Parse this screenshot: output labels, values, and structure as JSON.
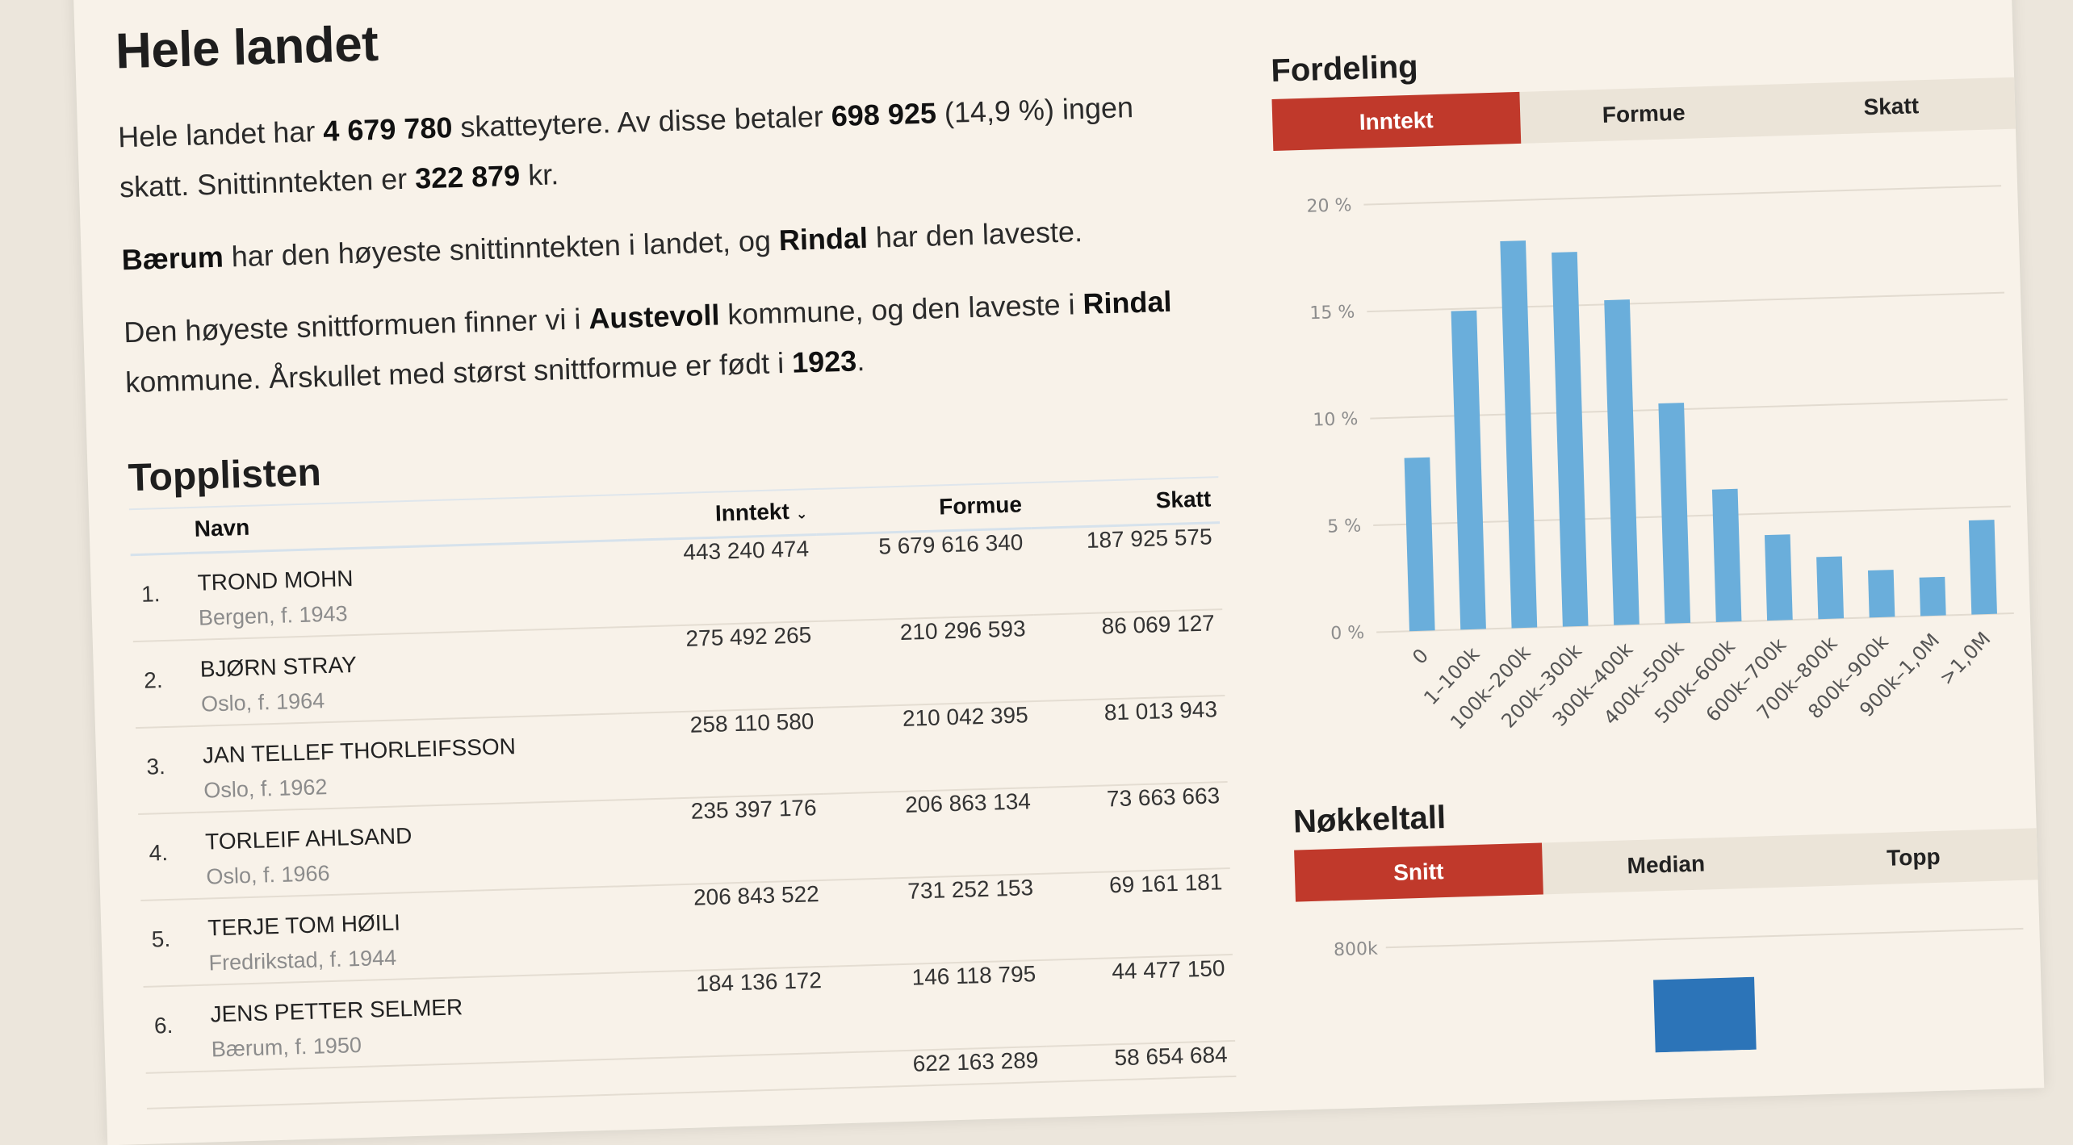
{
  "page": {
    "title": "Hele landet",
    "intro": {
      "p1_a": "Hele landet har ",
      "p1_taxpayers": "4 679 780",
      "p1_b": " skatteytere. Av disse betaler ",
      "p1_nontax": "698 925",
      "p1_c": " (14,9 %) ingen skatt. Snittinntekten er ",
      "p1_avg": "322 879",
      "p1_d": " kr.",
      "p2_high": "Bærum",
      "p2_a": " har den høyeste snittinntekten i landet, og ",
      "p2_low": "Rindal",
      "p2_b": " har den laveste.",
      "p3_a": "Den høyeste snittformuen finner vi i ",
      "p3_high": "Austevoll",
      "p3_b": " kommune, og den laveste i ",
      "p3_low": "Rindal",
      "p3_c": " kommune. Årskullet med størst snittformue er født i ",
      "p3_year": "1923",
      "p3_d": "."
    }
  },
  "toplist": {
    "title": "Topplisten",
    "columns": {
      "name": "Navn",
      "income": "Inntekt",
      "wealth": "Formue",
      "tax": "Skatt"
    },
    "sort_icon": "chevron-down-icon",
    "rows": [
      {
        "rank": "1.",
        "name": "TROND MOHN",
        "meta": "Bergen, f. 1943",
        "income": "443 240 474",
        "wealth": "5 679 616 340",
        "tax": "187 925 575"
      },
      {
        "rank": "2.",
        "name": "BJØRN STRAY",
        "meta": "Oslo, f. 1964",
        "income": "275 492 265",
        "wealth": "210 296 593",
        "tax": "86 069 127"
      },
      {
        "rank": "3.",
        "name": "JAN TELLEF THORLEIFSSON",
        "meta": "Oslo, f. 1962",
        "income": "258 110 580",
        "wealth": "210 042 395",
        "tax": "81 013 943"
      },
      {
        "rank": "4.",
        "name": "TORLEIF AHLSAND",
        "meta": "Oslo, f. 1966",
        "income": "235 397 176",
        "wealth": "206 863 134",
        "tax": "73 663 663"
      },
      {
        "rank": "5.",
        "name": "TERJE TOM HØILI",
        "meta": "Fredrikstad, f. 1944",
        "income": "206 843 522",
        "wealth": "731 252 153",
        "tax": "69 161 181"
      },
      {
        "rank": "6.",
        "name": "JENS PETTER SELMER",
        "meta": "Bærum, f. 1950",
        "income": "184 136 172",
        "wealth": "146 118 795",
        "tax": "44 477 150"
      },
      {
        "rank": "",
        "name": "",
        "meta": "",
        "income": "",
        "wealth": "622 163 289",
        "tax": "58 654 684"
      }
    ]
  },
  "distribution": {
    "title": "Fordeling",
    "tabs": [
      {
        "label": "Inntekt",
        "active": true
      },
      {
        "label": "Formue",
        "active": false
      },
      {
        "label": "Skatt",
        "active": false
      }
    ]
  },
  "chart_data": [
    {
      "type": "bar",
      "categories": [
        "0",
        "1–100k",
        "100k–200k",
        "200k–300k",
        "300k–400k",
        "400k–500k",
        "500k–600k",
        "600k–700k",
        "700k–800k",
        "800k–900k",
        "900k–1,0M",
        ">1,0M"
      ],
      "values": [
        8.1,
        14.9,
        18.1,
        17.5,
        15.2,
        10.3,
        6.2,
        4.0,
        2.9,
        2.2,
        1.8,
        4.4
      ],
      "yticks": [
        "0 %",
        "5 %",
        "10 %",
        "15 %",
        "20 %"
      ],
      "ylim": [
        0,
        20
      ],
      "grid": true,
      "bar_color": "#6aaedb"
    }
  ],
  "keyfigures": {
    "title": "Nøkkeltall",
    "tabs": [
      {
        "label": "Snitt",
        "active": true
      },
      {
        "label": "Median",
        "active": false
      },
      {
        "label": "Topp",
        "active": false
      }
    ],
    "y_top_label": "800k",
    "bar_color": "#2c74b8"
  },
  "colors": {
    "accent": "#c0392b",
    "page_bg": "#f8f2e9"
  }
}
